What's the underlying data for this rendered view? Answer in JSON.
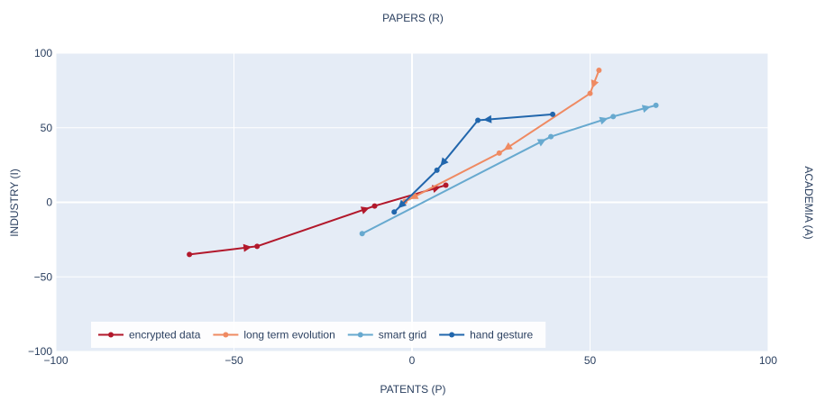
{
  "chart_data": {
    "type": "line",
    "title": "",
    "top_label": "PAPERS (R)",
    "xlabel": "PATENTS (P)",
    "ylabel": "INDUSTRY (I)",
    "right_label": "ACADEMIA (A)",
    "xlim": [
      -100,
      100
    ],
    "ylim": [
      -100,
      100
    ],
    "x_ticks": [
      -100,
      -50,
      0,
      50,
      100
    ],
    "y_ticks": [
      -100,
      -50,
      0,
      50,
      100
    ],
    "x_tick_labels": [
      "−100",
      "−50",
      "0",
      "50",
      "100"
    ],
    "y_tick_labels": [
      "−100",
      "−50",
      "0",
      "50",
      "100"
    ],
    "grid": true,
    "plot_background": "#e5ecf6",
    "legend_position": "bottom-left",
    "series": [
      {
        "name": "encrypted data",
        "color": "#b2182b",
        "x": [
          -62.5,
          -43.5,
          -10.5,
          9.5
        ],
        "y": [
          -35,
          -29.5,
          -2.5,
          11.5
        ]
      },
      {
        "name": "long term evolution",
        "color": "#ef8a62",
        "x": [
          52.5,
          50,
          24.5,
          -2
        ],
        "y": [
          88.5,
          73,
          33,
          0.5
        ]
      },
      {
        "name": "smart grid",
        "color": "#67a9cf",
        "x": [
          -14,
          39,
          56.5,
          68.5
        ],
        "y": [
          -21,
          44,
          57.5,
          65
        ]
      },
      {
        "name": "hand gesture",
        "color": "#2166ac",
        "x": [
          39.5,
          18.5,
          7,
          -5
        ],
        "y": [
          59,
          55,
          21.5,
          -6.5
        ]
      }
    ]
  }
}
